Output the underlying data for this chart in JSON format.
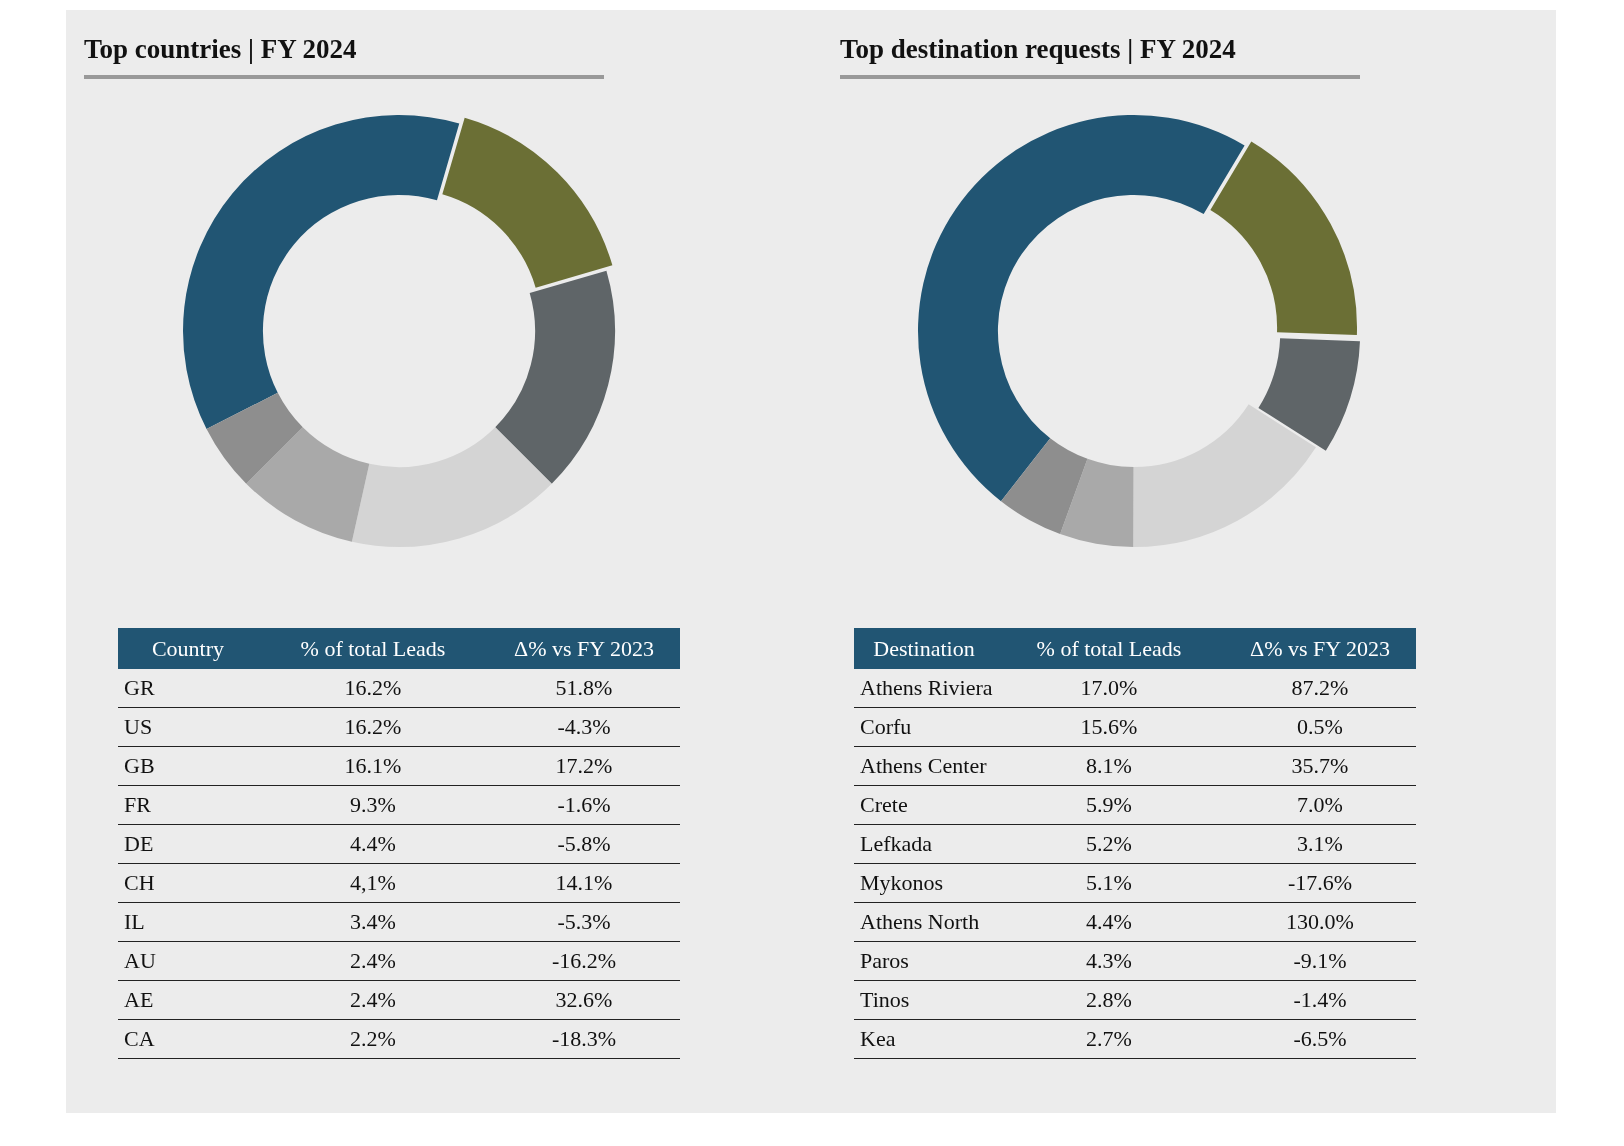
{
  "chart_data": [
    {
      "type": "donut",
      "title": "Top countries | FY 2024",
      "categories": [
        null,
        null,
        null,
        null,
        null,
        null
      ],
      "values": [
        37,
        16,
        17,
        16,
        9,
        5
      ],
      "colors": [
        "#215573",
        "#6b6f35",
        "#5f6568",
        "#d4d4d4",
        "#a9a9a9",
        "#8e8e8e"
      ]
    },
    {
      "type": "other",
      "xlabel": "Country",
      "categories": [
        "GR",
        "US",
        "GB",
        "FR",
        "DE",
        "CH",
        "IL",
        "AU",
        "AE",
        "CA"
      ],
      "series": [
        {
          "name": "% of total Leads",
          "values": [
            16.2,
            16.2,
            16.1,
            9.3,
            4.4,
            4.1,
            3.4,
            2.4,
            2.4,
            2.2
          ],
          "value_labels": [
            "16.2%",
            "16.2%",
            "16.1%",
            "9.3%",
            "4.4%",
            "4,1%",
            "3.4%",
            "2.4%",
            "2.4%",
            "2.2%"
          ]
        },
        {
          "name": "Δ% vs FY 2023",
          "values": [
            51.8,
            -4.3,
            17.2,
            -1.6,
            -5.8,
            14.1,
            -5.3,
            -16.2,
            32.6,
            -18.3
          ],
          "value_labels": [
            "51.8%",
            "-4.3%",
            "17.2%",
            "-1.6%",
            "-5.8%",
            "14.1%",
            "-5.3%",
            "-16.2%",
            "32.6%",
            "-18.3%"
          ]
        }
      ]
    },
    {
      "type": "donut",
      "title": "Top destination requests | FY 2024",
      "categories": [
        null,
        null,
        null,
        null,
        null,
        null
      ],
      "values": [
        48,
        17,
        8.5,
        16,
        5.5,
        5
      ],
      "colors": [
        "#215573",
        "#6b6f35",
        "#5f6568",
        "#d4d4d4",
        "#a9a9a9",
        "#8e8e8e"
      ]
    },
    {
      "type": "other",
      "xlabel": "Destination",
      "categories": [
        "Athens Riviera",
        "Corfu",
        "Athens Center",
        "Crete",
        "Lefkada",
        "Mykonos",
        "Athens North",
        "Paros",
        "Tinos",
        "Kea"
      ],
      "series": [
        {
          "name": "% of total Leads",
          "values": [
            17.0,
            15.6,
            8.1,
            5.9,
            5.2,
            5.1,
            4.4,
            4.3,
            2.8,
            2.7
          ],
          "value_labels": [
            "17.0%",
            "15.6%",
            "8.1%",
            "5.9%",
            "5.2%",
            "5.1%",
            "4.4%",
            "4.3%",
            "2.8%",
            "2.7%"
          ]
        },
        {
          "name": "Δ% vs FY 2023",
          "values": [
            87.2,
            0.5,
            35.7,
            7.0,
            3.1,
            -17.6,
            130.0,
            -9.1,
            -1.4,
            -6.5
          ],
          "value_labels": [
            "87.2%",
            "0.5%",
            "35.7%",
            "7.0%",
            "3.1%",
            "-17.6%",
            "130.0%",
            "-9.1%",
            "-1.4%",
            "-6.5%"
          ]
        }
      ]
    }
  ]
}
